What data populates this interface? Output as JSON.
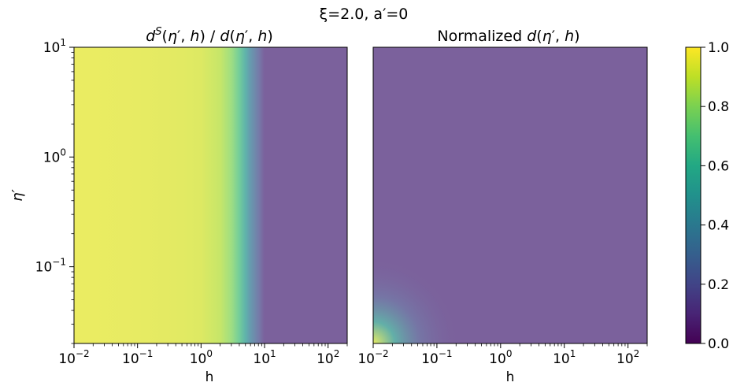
{
  "figure": {
    "suptitle": "ξ=2.0, a′=0"
  },
  "chart_data": [
    {
      "type": "heatmap",
      "title": "dS(η′, h) / d(η′, h)",
      "xlabel": "h",
      "ylabel": "η′",
      "xscale": "log",
      "yscale": "log",
      "xlim": [
        0.01,
        200
      ],
      "ylim": [
        0.02,
        10
      ],
      "xticks": [
        0.01,
        0.1,
        1,
        10,
        100
      ],
      "yticks": [
        0.1,
        1,
        10
      ],
      "xticklabels": [
        "10^-2",
        "10^-1",
        "10^0",
        "10^1",
        "10^2"
      ],
      "yticklabels": [
        "10^-1",
        "10^0",
        "10^1"
      ],
      "profile_along_h": {
        "h": [
          0.01,
          0.1,
          0.5,
          1,
          2,
          3,
          4,
          5,
          6,
          8,
          10,
          200
        ],
        "value": [
          0.96,
          0.95,
          0.94,
          0.93,
          0.88,
          0.8,
          0.68,
          0.52,
          0.38,
          0.22,
          0.1,
          0.1
        ]
      }
    },
    {
      "type": "heatmap",
      "title": "Normalized d(η′, h)",
      "xlabel": "h",
      "xscale": "log",
      "yscale": "log",
      "xlim": [
        0.01,
        200
      ],
      "ylim": [
        0.02,
        10
      ],
      "xticks": [
        0.01,
        0.1,
        1,
        10,
        100
      ],
      "xticklabels": [
        "10^-2",
        "10^-1",
        "10^0",
        "10^1",
        "10^2"
      ],
      "background_value": 0.1,
      "corner_peak": {
        "h": 0.01,
        "eta": 0.02,
        "value": 0.95
      }
    }
  ],
  "colorbar": {
    "colormap": "viridis",
    "range": [
      0.0,
      1.0
    ],
    "ticks": [
      0.0,
      0.2,
      0.4,
      0.6,
      0.8,
      1.0
    ],
    "ticklabels": [
      "0.0",
      "0.2",
      "0.4",
      "0.6",
      "0.8",
      "1.0"
    ]
  }
}
